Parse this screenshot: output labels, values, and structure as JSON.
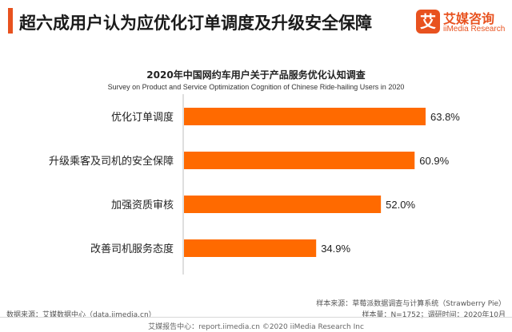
{
  "header": {
    "headline": "超六成用户认为应优化订单调度及升级安全保障",
    "logo_mark": "艾",
    "logo_cn": "艾媒咨询",
    "logo_en": "iiMedia Research"
  },
  "colors": {
    "bar": "#ff6a00",
    "accent": "#e8521f",
    "axis": "#bfbfbf"
  },
  "chart_data": {
    "type": "bar",
    "orientation": "horizontal",
    "title": "2020年中国网约车用户关于产品服务优化认知调查",
    "subtitle": "Survey on Product and Service Optimization Cognition of Chinese Ride-hailing Users in 2020",
    "categories": [
      "优化订单调度",
      "升级乘客及司机的安全保障",
      "加强资质审核",
      "改善司机服务态度"
    ],
    "values": [
      63.8,
      60.9,
      52.0,
      34.9
    ],
    "value_labels": [
      "63.8%",
      "60.9%",
      "52.0%",
      "34.9%"
    ],
    "xlim": [
      0,
      70
    ],
    "xlabel": "",
    "ylabel": "",
    "grid": false,
    "legend": "none"
  },
  "sources": {
    "left": "数据来源：艾媒数据中心（data.iimedia.cn）",
    "right_line1": "样本来源：草莓派数据调查与计算系统（Strawberry Pie）",
    "right_line2": "样本量：N=1752；调研时间：2020年10月"
  },
  "footer": {
    "text": "艾媒报告中心：report.iimedia.cn ©2020  iiMedia Research  Inc"
  }
}
